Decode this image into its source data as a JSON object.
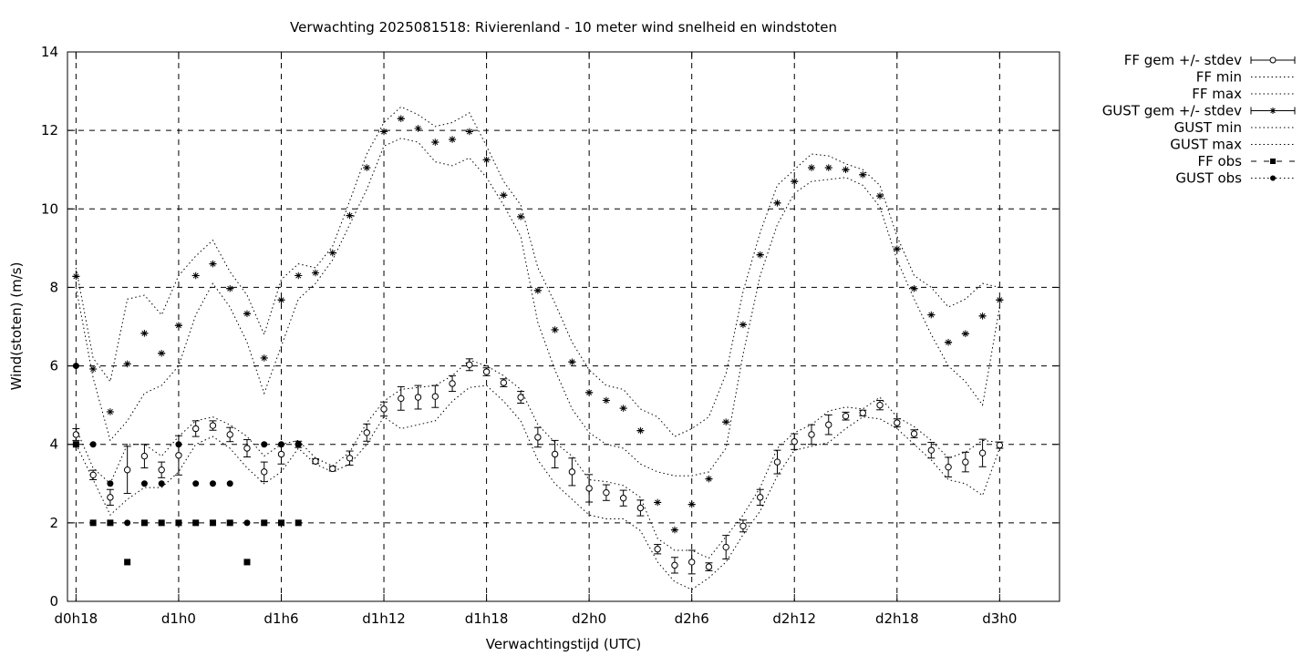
{
  "chart_data": {
    "type": "line",
    "title": "Verwachting 2025081518: Rivierenland - 10 meter wind snelheid en windstoten",
    "xlabel": "Verwachtingstijd (UTC)",
    "ylabel": "Wind(stoten) (m/s)",
    "xlim": [
      -0.5,
      57.5
    ],
    "ylim": [
      0,
      14
    ],
    "yticks": [
      0,
      2,
      4,
      6,
      8,
      10,
      12,
      14
    ],
    "xticks": [
      {
        "x": 0,
        "label": "d0h18"
      },
      {
        "x": 6,
        "label": "d1h0"
      },
      {
        "x": 12,
        "label": "d1h6"
      },
      {
        "x": 18,
        "label": "d1h12"
      },
      {
        "x": 24,
        "label": "d1h18"
      },
      {
        "x": 30,
        "label": "d2h0"
      },
      {
        "x": 36,
        "label": "d2h6"
      },
      {
        "x": 42,
        "label": "d2h12"
      },
      {
        "x": 48,
        "label": "d2h18"
      },
      {
        "x": 54,
        "label": "d3h0"
      }
    ],
    "grid": true,
    "legend_position": "outside-right",
    "x_units": "hours since d0h18",
    "series": [
      {
        "name": "FF gem +/- stdev",
        "style": "errorbar-open-circle",
        "x": [
          0,
          1,
          2,
          3,
          4,
          5,
          6,
          7,
          8,
          9,
          10,
          11,
          12,
          13,
          14,
          15,
          16,
          17,
          18,
          19,
          20,
          21,
          22,
          23,
          24,
          25,
          26,
          27,
          28,
          29,
          30,
          31,
          32,
          33,
          34,
          35,
          36,
          37,
          38,
          39,
          40,
          41,
          42,
          43,
          44,
          45,
          46,
          47,
          48,
          49,
          50,
          51,
          52,
          53,
          54
        ],
        "y": [
          4.25,
          3.22,
          2.65,
          3.35,
          3.7,
          3.35,
          3.72,
          4.4,
          4.48,
          4.25,
          3.9,
          3.3,
          3.75,
          4.0,
          3.57,
          3.38,
          3.65,
          4.3,
          4.9,
          5.17,
          5.2,
          5.22,
          5.55,
          6.03,
          5.85,
          5.57,
          5.2,
          4.18,
          3.75,
          3.3,
          2.88,
          2.77,
          2.63,
          2.38,
          1.33,
          0.92,
          1.0,
          0.88,
          1.38,
          1.92,
          2.65,
          3.55,
          4.07,
          4.25,
          4.5,
          4.72,
          4.8,
          5.0,
          4.55,
          4.27,
          3.85,
          3.42,
          3.55,
          3.78,
          3.98
        ],
        "err": [
          0.15,
          0.12,
          0.2,
          0.6,
          0.3,
          0.2,
          0.5,
          0.2,
          0.12,
          0.18,
          0.22,
          0.25,
          0.25,
          0.08,
          0.06,
          0.06,
          0.18,
          0.22,
          0.18,
          0.3,
          0.3,
          0.28,
          0.2,
          0.15,
          0.1,
          0.1,
          0.15,
          0.25,
          0.35,
          0.35,
          0.35,
          0.2,
          0.2,
          0.2,
          0.12,
          0.2,
          0.3,
          0.1,
          0.3,
          0.15,
          0.2,
          0.3,
          0.2,
          0.25,
          0.25,
          0.1,
          0.07,
          0.12,
          0.1,
          0.1,
          0.2,
          0.25,
          0.25,
          0.35,
          0.08
        ]
      },
      {
        "name": "FF min",
        "style": "dotted",
        "x": [
          0,
          1,
          2,
          3,
          4,
          5,
          6,
          7,
          8,
          9,
          10,
          11,
          12,
          13,
          14,
          15,
          16,
          17,
          18,
          19,
          20,
          21,
          22,
          23,
          24,
          25,
          26,
          27,
          28,
          29,
          30,
          31,
          32,
          33,
          34,
          35,
          36,
          37,
          38,
          39,
          40,
          41,
          42,
          43,
          44,
          45,
          46,
          47,
          48,
          49,
          50,
          51,
          52,
          53,
          54
        ],
        "y": [
          4.0,
          3.1,
          2.2,
          2.6,
          2.9,
          2.9,
          3.3,
          4.0,
          4.2,
          3.9,
          3.4,
          3.0,
          3.3,
          3.9,
          3.5,
          3.3,
          3.5,
          4.0,
          4.7,
          4.4,
          4.5,
          4.6,
          5.1,
          5.45,
          5.5,
          5.1,
          4.6,
          3.6,
          3.0,
          2.6,
          2.2,
          2.1,
          2.1,
          1.8,
          1.0,
          0.5,
          0.3,
          0.6,
          1.0,
          1.7,
          2.3,
          3.2,
          3.85,
          3.95,
          4.05,
          4.4,
          4.7,
          4.65,
          4.4,
          4.0,
          3.6,
          3.1,
          3.0,
          2.7,
          3.9
        ]
      },
      {
        "name": "FF max",
        "style": "dotted",
        "x": [
          0,
          1,
          2,
          3,
          4,
          5,
          6,
          7,
          8,
          9,
          10,
          11,
          12,
          13,
          14,
          15,
          16,
          17,
          18,
          19,
          20,
          21,
          22,
          23,
          24,
          25,
          26,
          27,
          28,
          29,
          30,
          31,
          32,
          33,
          34,
          35,
          36,
          37,
          38,
          39,
          40,
          41,
          42,
          43,
          44,
          45,
          46,
          47,
          48,
          49,
          50,
          51,
          52,
          53,
          54
        ],
        "y": [
          4.4,
          3.4,
          3.0,
          4.0,
          4.0,
          3.7,
          4.2,
          4.6,
          4.7,
          4.5,
          4.2,
          3.7,
          4.0,
          4.1,
          3.65,
          3.45,
          3.8,
          4.55,
          5.1,
          5.4,
          5.45,
          5.5,
          5.75,
          6.15,
          6.0,
          5.75,
          5.4,
          4.5,
          4.05,
          3.7,
          3.1,
          3.05,
          2.95,
          2.65,
          1.6,
          1.3,
          1.3,
          1.1,
          1.65,
          2.2,
          2.9,
          3.9,
          4.3,
          4.5,
          4.85,
          4.95,
          4.9,
          5.2,
          4.7,
          4.45,
          4.1,
          3.65,
          3.8,
          4.1,
          4.05
        ]
      },
      {
        "name": "GUST gem +/- stdev",
        "style": "errorbar-star",
        "x": [
          0,
          1,
          2,
          3,
          4,
          5,
          6,
          7,
          8,
          9,
          10,
          11,
          12,
          13,
          14,
          15,
          16,
          17,
          18,
          19,
          20,
          21,
          22,
          23,
          24,
          25,
          26,
          27,
          28,
          29,
          30,
          31,
          32,
          33,
          34,
          35,
          36,
          37,
          38,
          39,
          40,
          41,
          42,
          43,
          44,
          45,
          46,
          47,
          48,
          49,
          50,
          51,
          52,
          53,
          54
        ],
        "y": [
          8.28,
          5.92,
          4.83,
          6.05,
          6.83,
          6.32,
          7.03,
          8.3,
          8.6,
          7.97,
          7.33,
          6.2,
          7.68,
          8.3,
          8.37,
          8.88,
          9.83,
          11.05,
          11.97,
          12.3,
          12.05,
          11.7,
          11.77,
          11.97,
          11.25,
          10.35,
          9.8,
          7.92,
          6.92,
          6.1,
          5.32,
          5.12,
          4.92,
          4.35,
          2.52,
          1.82,
          2.47,
          3.12,
          4.57,
          7.05,
          8.83,
          10.15,
          10.7,
          11.05,
          11.05,
          11.0,
          10.87,
          10.33,
          8.98,
          7.97,
          7.3,
          6.6,
          6.82,
          7.27,
          7.68
        ]
      },
      {
        "name": "GUST min",
        "style": "dotted",
        "x": [
          0,
          1,
          2,
          3,
          4,
          5,
          6,
          7,
          8,
          9,
          10,
          11,
          12,
          13,
          14,
          15,
          16,
          17,
          18,
          19,
          20,
          21,
          22,
          23,
          24,
          25,
          26,
          27,
          28,
          29,
          30,
          31,
          32,
          33,
          34,
          35,
          36,
          37,
          38,
          39,
          40,
          41,
          42,
          43,
          44,
          45,
          46,
          47,
          48,
          49,
          50,
          51,
          52,
          53,
          54
        ],
        "y": [
          8.0,
          5.7,
          4.1,
          4.6,
          5.3,
          5.5,
          6.0,
          7.3,
          8.1,
          7.5,
          6.6,
          5.3,
          6.5,
          7.7,
          8.1,
          8.7,
          9.6,
          10.5,
          11.6,
          11.8,
          11.7,
          11.2,
          11.1,
          11.3,
          10.8,
          10.1,
          9.3,
          7.1,
          5.9,
          4.9,
          4.3,
          4.0,
          3.9,
          3.5,
          3.3,
          3.2,
          3.2,
          3.3,
          3.9,
          6.3,
          8.3,
          9.6,
          10.4,
          10.7,
          10.75,
          10.8,
          10.6,
          10.05,
          8.7,
          7.7,
          6.8,
          6.0,
          5.6,
          5.0,
          7.5
        ]
      },
      {
        "name": "GUST max",
        "style": "dotted",
        "x": [
          0,
          1,
          2,
          3,
          4,
          5,
          6,
          7,
          8,
          9,
          10,
          11,
          12,
          13,
          14,
          15,
          16,
          17,
          18,
          19,
          20,
          21,
          22,
          23,
          24,
          25,
          26,
          27,
          28,
          29,
          30,
          31,
          32,
          33,
          34,
          35,
          36,
          37,
          38,
          39,
          40,
          41,
          42,
          43,
          44,
          45,
          46,
          47,
          48,
          49,
          50,
          51,
          52,
          53,
          54
        ],
        "y": [
          8.5,
          6.2,
          5.6,
          7.7,
          7.8,
          7.3,
          8.3,
          8.8,
          9.2,
          8.4,
          7.8,
          6.8,
          8.2,
          8.6,
          8.5,
          9.05,
          10.2,
          11.4,
          12.2,
          12.6,
          12.4,
          12.1,
          12.2,
          12.45,
          11.6,
          10.7,
          10.1,
          8.5,
          7.6,
          6.6,
          5.9,
          5.5,
          5.4,
          4.9,
          4.7,
          4.2,
          4.4,
          4.7,
          5.8,
          7.9,
          9.4,
          10.6,
          11.0,
          11.4,
          11.35,
          11.15,
          11.0,
          10.6,
          9.3,
          8.3,
          8.0,
          7.5,
          7.7,
          8.1,
          8.0
        ]
      },
      {
        "name": "FF obs",
        "style": "dashed-filled-square",
        "x": [
          0,
          1,
          2,
          3,
          4,
          5,
          6,
          7,
          8,
          9,
          10,
          11,
          12,
          13
        ],
        "y": [
          4,
          2,
          2,
          1,
          2,
          2,
          2,
          2,
          2,
          2,
          1,
          2,
          2,
          2
        ]
      },
      {
        "name": "GUST obs",
        "style": "dotted-filled-circle",
        "x": [
          0,
          1,
          2,
          3,
          4,
          5,
          6,
          7,
          8,
          9,
          10,
          11,
          12,
          13
        ],
        "y": [
          6,
          4,
          3,
          2,
          3,
          3,
          4,
          3,
          3,
          3,
          2,
          4,
          4,
          4
        ]
      }
    ]
  }
}
